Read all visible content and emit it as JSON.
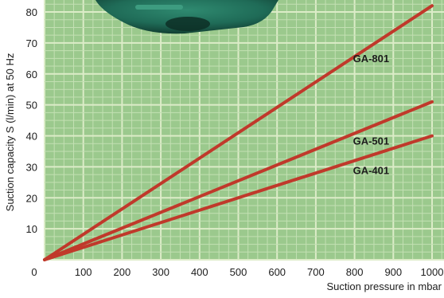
{
  "colors": {
    "plot_bg": "#9bc98d",
    "grid_major": "#dcecc8",
    "grid_minor": "#c3e0b3",
    "line": "#c0392b",
    "text": "#1c1c1c",
    "product_photo": "#1f6b57"
  },
  "chart_data": {
    "type": "line",
    "title": "",
    "xlabel": "Suction pressure in mbar",
    "ylabel": "Suction capacity S (l/min) at 50 Hz",
    "xlim": [
      0,
      1000
    ],
    "ylim": [
      0,
      80
    ],
    "x_ticks": [
      "0",
      "100",
      "200",
      "300",
      "400",
      "500",
      "600",
      "700",
      "800",
      "900",
      "1000"
    ],
    "y_ticks": [
      "10",
      "20",
      "30",
      "40",
      "50",
      "60",
      "70",
      "80"
    ],
    "grid": true,
    "series": [
      {
        "name": "GA-801",
        "points": [
          [
            0,
            0
          ],
          [
            1000,
            82
          ]
        ]
      },
      {
        "name": "GA-501",
        "points": [
          [
            0,
            0
          ],
          [
            1000,
            51
          ]
        ]
      },
      {
        "name": "GA-401",
        "points": [
          [
            0,
            0
          ],
          [
            1000,
            40
          ]
        ]
      }
    ]
  }
}
